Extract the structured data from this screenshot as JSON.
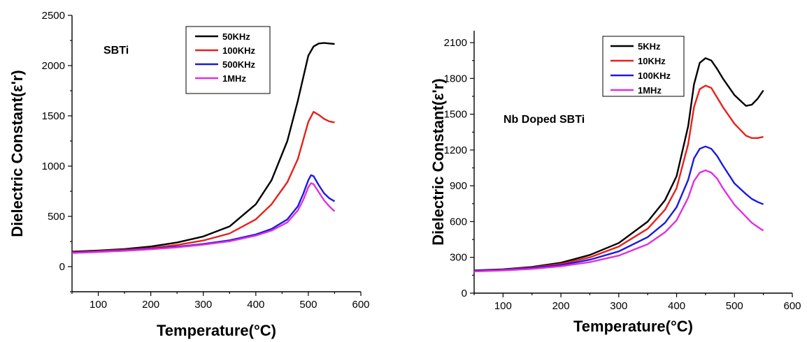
{
  "chart_data": [
    {
      "type": "line",
      "title": "",
      "annotation": "SBTi",
      "xlabel": "Temperature(°C)",
      "ylabel": "Dielectric Constant(ε'r)",
      "xlim": [
        50,
        600
      ],
      "ylim": [
        -250,
        2500
      ],
      "xticks": [
        100,
        200,
        300,
        400,
        500,
        600
      ],
      "xtick_labels": [
        "100",
        "200",
        "300",
        "400",
        "500",
        "600"
      ],
      "yticks": [
        0,
        500,
        1000,
        1500,
        2000,
        2500
      ],
      "ytick_labels": [
        "0",
        "500",
        "1000",
        "1500",
        "2000",
        "2500"
      ],
      "legend_position": "top-center",
      "series": [
        {
          "name": "50KHz",
          "color": "#000000",
          "x": [
            50,
            100,
            150,
            200,
            250,
            300,
            350,
            400,
            430,
            460,
            480,
            500,
            510,
            520,
            530,
            540,
            550
          ],
          "y": [
            150,
            160,
            175,
            200,
            240,
            300,
            400,
            620,
            860,
            1250,
            1650,
            2100,
            2190,
            2220,
            2225,
            2220,
            2215
          ]
        },
        {
          "name": "100KHz",
          "color": "#e8201a",
          "x": [
            50,
            100,
            150,
            200,
            250,
            300,
            350,
            400,
            430,
            460,
            480,
            500,
            510,
            520,
            530,
            540,
            550
          ],
          "y": [
            145,
            155,
            168,
            185,
            215,
            260,
            330,
            470,
            620,
            840,
            1070,
            1440,
            1540,
            1510,
            1470,
            1445,
            1435
          ]
        },
        {
          "name": "500KHz",
          "color": "#1a1ae0",
          "x": [
            50,
            100,
            150,
            200,
            250,
            300,
            350,
            400,
            430,
            460,
            480,
            490,
            500,
            505,
            510,
            520,
            530,
            540,
            550
          ],
          "y": [
            140,
            150,
            162,
            178,
            198,
            225,
            262,
            320,
            375,
            470,
            600,
            720,
            860,
            910,
            900,
            810,
            730,
            680,
            650
          ]
        },
        {
          "name": "1MHz",
          "color": "#e030e0",
          "x": [
            50,
            100,
            150,
            200,
            250,
            300,
            350,
            400,
            430,
            460,
            480,
            490,
            500,
            505,
            510,
            520,
            530,
            540,
            550
          ],
          "y": [
            135,
            145,
            157,
            172,
            192,
            218,
            252,
            308,
            358,
            440,
            560,
            660,
            790,
            830,
            820,
            740,
            660,
            600,
            550
          ]
        }
      ]
    },
    {
      "type": "line",
      "title": "",
      "annotation": "Nb Doped SBTi",
      "xlabel": "Temperature(°C)",
      "ylabel": "Dielectric Constant(ε'r)",
      "xlim": [
        50,
        600
      ],
      "ylim": [
        0,
        2200
      ],
      "xticks": [
        100,
        200,
        300,
        400,
        500,
        600
      ],
      "xtick_labels": [
        "100",
        "200",
        "300",
        "400",
        "500",
        "600"
      ],
      "yticks": [
        0,
        300,
        600,
        900,
        1200,
        1500,
        1800,
        2100
      ],
      "ytick_labels": [
        "0",
        "300",
        "600",
        "900",
        "1200",
        "1500",
        "1800",
        "2100"
      ],
      "legend_position": "top-center",
      "series": [
        {
          "name": "5KHz",
          "color": "#000000",
          "x": [
            50,
            100,
            150,
            200,
            250,
            300,
            350,
            380,
            400,
            420,
            430,
            440,
            450,
            460,
            470,
            480,
            500,
            520,
            530,
            540,
            550
          ],
          "y": [
            190,
            200,
            220,
            255,
            320,
            420,
            600,
            780,
            980,
            1400,
            1750,
            1930,
            1970,
            1950,
            1880,
            1800,
            1660,
            1570,
            1580,
            1630,
            1700
          ]
        },
        {
          "name": "10KHz",
          "color": "#e8201a",
          "x": [
            50,
            100,
            150,
            200,
            250,
            300,
            350,
            380,
            400,
            420,
            430,
            440,
            450,
            460,
            470,
            480,
            500,
            520,
            530,
            540,
            550
          ],
          "y": [
            188,
            198,
            215,
            245,
            300,
            390,
            540,
            700,
            880,
            1250,
            1560,
            1710,
            1740,
            1720,
            1640,
            1560,
            1420,
            1320,
            1300,
            1300,
            1310
          ]
        },
        {
          "name": "100KHz",
          "color": "#1a1ae0",
          "x": [
            50,
            100,
            150,
            200,
            250,
            300,
            350,
            380,
            400,
            420,
            430,
            440,
            450,
            460,
            470,
            480,
            500,
            520,
            530,
            540,
            550
          ],
          "y": [
            186,
            195,
            210,
            235,
            280,
            350,
            470,
            590,
            720,
            950,
            1130,
            1210,
            1230,
            1210,
            1150,
            1070,
            920,
            830,
            790,
            765,
            745
          ]
        },
        {
          "name": "1MHz",
          "color": "#e030e0",
          "x": [
            50,
            100,
            150,
            200,
            250,
            300,
            350,
            380,
            400,
            420,
            430,
            440,
            450,
            460,
            470,
            480,
            500,
            520,
            530,
            540,
            550
          ],
          "y": [
            182,
            190,
            203,
            225,
            260,
            315,
            410,
            510,
            610,
            800,
            940,
            1010,
            1030,
            1010,
            960,
            880,
            740,
            640,
            590,
            555,
            525
          ]
        }
      ]
    }
  ]
}
